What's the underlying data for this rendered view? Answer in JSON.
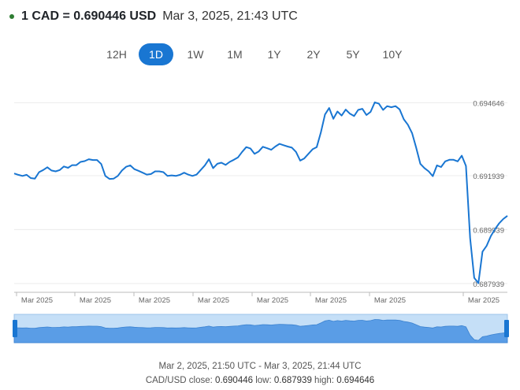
{
  "header": {
    "rate_text": "1 CAD = 0.690446 USD",
    "timestamp": "Mar 3, 2025, 21:43 UTC",
    "status_color": "#2e7d32"
  },
  "range_tabs": {
    "items": [
      "12H",
      "1D",
      "1W",
      "1M",
      "1Y",
      "2Y",
      "5Y",
      "10Y"
    ],
    "active": "1D",
    "accent_color": "#1976d2"
  },
  "chart_data": {
    "type": "line",
    "title": "",
    "xlabel": "",
    "ylabel": "",
    "y_ticks": [
      0.694646,
      0.691939,
      0.689939,
      0.687939
    ],
    "ylim": [
      0.6877,
      0.6953
    ],
    "x_tick_labels": [
      "Mar 2025",
      "Mar 2025",
      "Mar 2025",
      "Mar 2025",
      "Mar 2025",
      "Mar 2025",
      "Mar 2025",
      "Mar 2025"
    ],
    "grid": true,
    "line_color": "#1976d2",
    "series": [
      {
        "values": [
          0.69202,
          0.69197,
          0.69193,
          0.69197,
          0.69185,
          0.69183,
          0.69207,
          0.69215,
          0.69225,
          0.69213,
          0.6921,
          0.69215,
          0.69228,
          0.69223,
          0.69233,
          0.69233,
          0.69245,
          0.69248,
          0.69255,
          0.69252,
          0.69252,
          0.69237,
          0.69193,
          0.69182,
          0.69183,
          0.69193,
          0.69213,
          0.69227,
          0.69232,
          0.69218,
          0.69212,
          0.69205,
          0.69198,
          0.692,
          0.6921,
          0.6921,
          0.69207,
          0.69193,
          0.69195,
          0.69193,
          0.69197,
          0.69205,
          0.69198,
          0.69193,
          0.69198,
          0.69215,
          0.69232,
          0.69255,
          0.69222,
          0.69238,
          0.69242,
          0.69234,
          0.69245,
          0.69253,
          0.69262,
          0.69282,
          0.693,
          0.69295,
          0.69275,
          0.69284,
          0.69301,
          0.69296,
          0.6929,
          0.69302,
          0.69312,
          0.69307,
          0.69302,
          0.69298,
          0.69282,
          0.6925,
          0.69258,
          0.69275,
          0.69292,
          0.693,
          0.69355,
          0.69421,
          0.69445,
          0.69405,
          0.69432,
          0.69417,
          0.69439,
          0.69424,
          0.69415,
          0.69438,
          0.69442,
          0.69419,
          0.69431,
          0.69466,
          0.69461,
          0.69438,
          0.69452,
          0.69448,
          0.69452,
          0.6944,
          0.69403,
          0.69383,
          0.69352,
          0.69297,
          0.69238,
          0.69222,
          0.6921,
          0.69192,
          0.69232,
          0.69226,
          0.69247,
          0.69253,
          0.69253,
          0.69247,
          0.69268,
          0.6923,
          0.68962,
          0.68815,
          0.68795,
          0.68912,
          0.68934,
          0.6897,
          0.68995,
          0.69017,
          0.69033,
          0.69045
        ]
      }
    ]
  },
  "navigator": {
    "fill_color": "#5a9de6",
    "mask_color": "#c5dff7"
  },
  "footer": {
    "range_text": "Mar 2, 2025, 21:50 UTC - Mar 3, 2025, 21:44 UTC",
    "pair_label": "CAD/USD",
    "close_label": "close:",
    "close_value": "0.690446",
    "low_label": "low:",
    "low_value": "0.687939",
    "high_label": "high:",
    "high_value": "0.694646"
  }
}
